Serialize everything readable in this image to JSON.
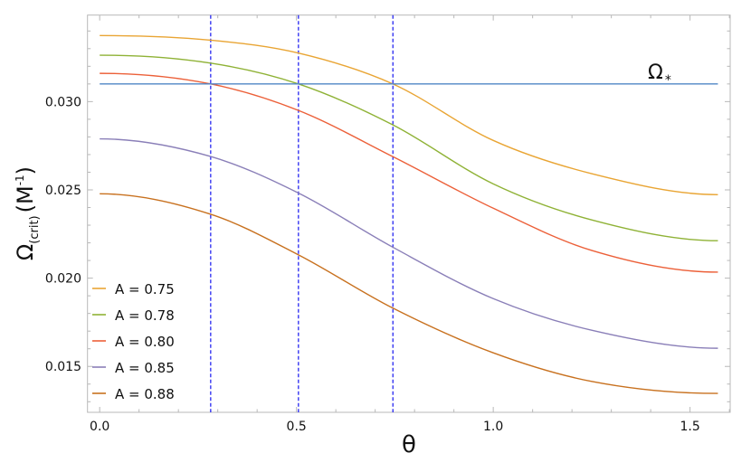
{
  "chart_data": {
    "type": "line",
    "xlabel": "θ",
    "ylabel_main": "Ω",
    "ylabel_sub": "(crit)",
    "ylabel_unit": "(M",
    "ylabel_exp": "-1",
    "ylabel_close": ")",
    "xlim": [
      -0.031,
      1.602
    ],
    "ylim": [
      0.0124,
      0.0349
    ],
    "xticks": [
      0.0,
      0.5,
      1.0,
      1.5
    ],
    "xtick_labels": [
      "0.0",
      "0.5",
      "1.0",
      "1.5"
    ],
    "yticks": [
      0.015,
      0.02,
      0.025,
      0.03
    ],
    "ytick_labels": [
      "0.015",
      "0.020",
      "0.025",
      "0.030"
    ],
    "grid": false,
    "legend_placement": "bottom-left",
    "x": [
      0,
      0.282,
      0.505,
      0.745,
      1.0,
      1.25,
      1.5708
    ],
    "series": [
      {
        "name": "A = 0.75",
        "color": "#E9A534",
        "values": [
          0.03374,
          0.03348,
          0.03275,
          0.031,
          0.0278,
          0.02592,
          0.02473
        ]
      },
      {
        "name": "A = 0.78",
        "color": "#8FB236",
        "values": [
          0.03263,
          0.03218,
          0.031,
          0.02868,
          0.02534,
          0.0233,
          0.02212
        ]
      },
      {
        "name": "A = 0.80",
        "color": "#EC6039",
        "values": [
          0.0316,
          0.031,
          0.0295,
          0.02688,
          0.02396,
          0.02157,
          0.02034
        ]
      },
      {
        "name": "A = 0.85",
        "color": "#8A7FB8",
        "values": [
          0.02789,
          0.02689,
          0.02482,
          0.02175,
          0.01884,
          0.01705,
          0.01603
        ]
      },
      {
        "name": "A = 0.88",
        "color": "#C8711F",
        "values": [
          0.02478,
          0.02362,
          0.02132,
          0.0183,
          0.01577,
          0.01415,
          0.01347
        ]
      }
    ],
    "reference_line": {
      "label_main": "Ω",
      "label_sub": "*",
      "value": 0.031,
      "color": "#4F86C6"
    },
    "vertical_lines": {
      "values": [
        0.282,
        0.505,
        0.745
      ],
      "color": "#1414F0",
      "style": "dashed"
    }
  }
}
